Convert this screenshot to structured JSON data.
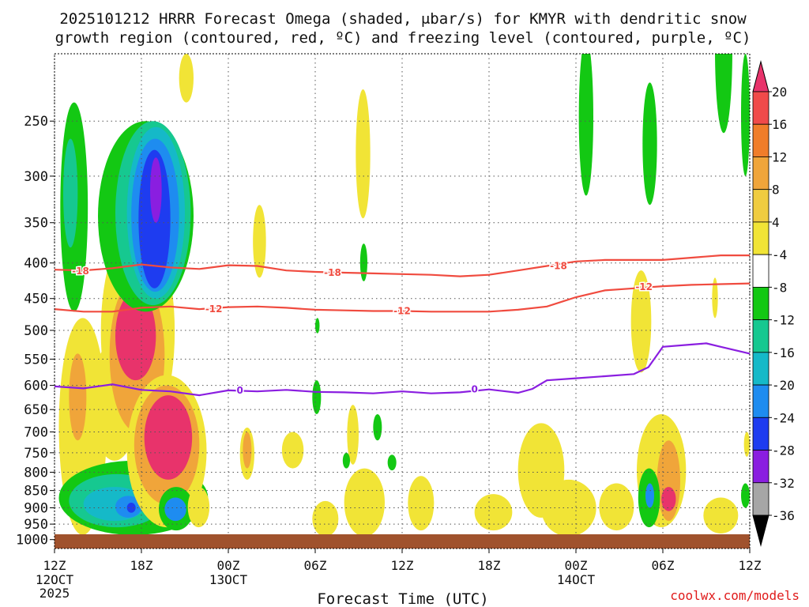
{
  "chart_data": {
    "type": "contour",
    "title_line1": "2025101212 HRRR Forecast Omega (shaded, μbar/s) for KMYR with dendritic snow",
    "title_line2": "growth region (contoured, red, ºC) and freezing level (contoured, purple, ºC)",
    "xlabel": "Forecast Time (UTC)",
    "credit": "coolwx.com/models",
    "x_range_hours": [
      0,
      48
    ],
    "y_range_hpa": [
      200,
      1030
    ],
    "x_ticks": [
      {
        "hour": 0,
        "label": "12Z",
        "sub1": "12OCT",
        "sub2": "2025"
      },
      {
        "hour": 6,
        "label": "18Z",
        "sub1": "",
        "sub2": ""
      },
      {
        "hour": 12,
        "label": "00Z",
        "sub1": "13OCT",
        "sub2": ""
      },
      {
        "hour": 18,
        "label": "06Z",
        "sub1": "",
        "sub2": ""
      },
      {
        "hour": 24,
        "label": "12Z",
        "sub1": "",
        "sub2": ""
      },
      {
        "hour": 30,
        "label": "18Z",
        "sub1": "",
        "sub2": ""
      },
      {
        "hour": 36,
        "label": "00Z",
        "sub1": "14OCT",
        "sub2": ""
      },
      {
        "hour": 42,
        "label": "06Z",
        "sub1": "",
        "sub2": ""
      },
      {
        "hour": 48,
        "label": "12Z",
        "sub1": "",
        "sub2": ""
      }
    ],
    "y_ticks": [
      250,
      300,
      350,
      400,
      450,
      500,
      550,
      600,
      650,
      700,
      750,
      800,
      850,
      900,
      950,
      1000
    ],
    "colorbar": {
      "labels": [
        "20",
        "16",
        "12",
        "8",
        "4",
        "-4",
        "-8",
        "-12",
        "-16",
        "-20",
        "-24",
        "-28",
        "-32",
        "-36"
      ],
      "colors": [
        "#e8336b",
        "#f04a4a",
        "#f07d2a",
        "#f0a53a",
        "#f0cc40",
        "#f1e436",
        "#ffffff",
        "#13c813",
        "#16c890",
        "#15b9c8",
        "#1e8cf0",
        "#1e3cf0",
        "#8a1ee0",
        "#a6a6a6",
        "#000000"
      ]
    },
    "contours": [
      {
        "name": "dendritic-upper",
        "level": "-18",
        "color": "#f04b3f",
        "points": [
          [
            0,
            409
          ],
          [
            2,
            410
          ],
          [
            4,
            407
          ],
          [
            6,
            402
          ],
          [
            8,
            406
          ],
          [
            10,
            408
          ],
          [
            12,
            403
          ],
          [
            14,
            404
          ],
          [
            16,
            410
          ],
          [
            18,
            412
          ],
          [
            20,
            413
          ],
          [
            22,
            414
          ],
          [
            24,
            415
          ],
          [
            26,
            416
          ],
          [
            28,
            418
          ],
          [
            30,
            416
          ],
          [
            32,
            410
          ],
          [
            34,
            404
          ],
          [
            36,
            398
          ],
          [
            38,
            396
          ],
          [
            40,
            396
          ],
          [
            42,
            396
          ],
          [
            44,
            393
          ],
          [
            46,
            390
          ],
          [
            48,
            390
          ]
        ],
        "labels": [
          [
            1.8,
            411
          ],
          [
            19.2,
            413
          ],
          [
            34.8,
            404
          ]
        ]
      },
      {
        "name": "dendritic-lower",
        "level": "-12",
        "color": "#f04b3f",
        "points": [
          [
            0,
            466
          ],
          [
            2,
            470
          ],
          [
            4,
            470
          ],
          [
            6,
            464
          ],
          [
            8,
            462
          ],
          [
            10,
            466
          ],
          [
            12,
            463
          ],
          [
            14,
            462
          ],
          [
            16,
            464
          ],
          [
            18,
            467
          ],
          [
            20,
            468
          ],
          [
            22,
            469
          ],
          [
            24,
            469
          ],
          [
            26,
            470
          ],
          [
            28,
            470
          ],
          [
            30,
            470
          ],
          [
            32,
            467
          ],
          [
            34,
            462
          ],
          [
            36,
            448
          ],
          [
            38,
            438
          ],
          [
            40,
            435
          ],
          [
            42,
            432
          ],
          [
            44,
            430
          ],
          [
            46,
            429
          ],
          [
            48,
            428
          ]
        ],
        "labels": [
          [
            11.0,
            466
          ],
          [
            24.0,
            469
          ],
          [
            40.7,
            433
          ]
        ]
      },
      {
        "name": "freezing-level",
        "level": "0",
        "color": "#8a1ee0",
        "points": [
          [
            0,
            602
          ],
          [
            2,
            606
          ],
          [
            4,
            598
          ],
          [
            6,
            609
          ],
          [
            8,
            612
          ],
          [
            10,
            620
          ],
          [
            12,
            610
          ],
          [
            14,
            612
          ],
          [
            16,
            609
          ],
          [
            18,
            613
          ],
          [
            20,
            614
          ],
          [
            22,
            616
          ],
          [
            24,
            612
          ],
          [
            26,
            616
          ],
          [
            28,
            614
          ],
          [
            30,
            608
          ],
          [
            32,
            615
          ],
          [
            33,
            607
          ],
          [
            34,
            590
          ],
          [
            36,
            586
          ],
          [
            38,
            582
          ],
          [
            40,
            578
          ],
          [
            41,
            565
          ],
          [
            42,
            528
          ],
          [
            44,
            524
          ],
          [
            45,
            522
          ],
          [
            46,
            528
          ],
          [
            48,
            540
          ]
        ],
        "labels": [
          [
            12.8,
            610
          ],
          [
            29.0,
            608
          ]
        ]
      }
    ],
    "omega_regions": [
      {
        "color": "#f1e436",
        "x": [
          0.3,
          3.6
        ],
        "p": [
          480,
          985
        ]
      },
      {
        "color": "#f0a53a",
        "x": [
          1.0,
          2.2
        ],
        "p": [
          540,
          720
        ]
      },
      {
        "color": "#13c813",
        "x": [
          0.4,
          2.3
        ],
        "p": [
          235,
          470
        ]
      },
      {
        "color": "#16c890",
        "x": [
          0.6,
          1.6
        ],
        "p": [
          265,
          380
        ]
      },
      {
        "color": "#13c813",
        "x": [
          0.3,
          10.6
        ],
        "p": [
          770,
          985
        ]
      },
      {
        "color": "#16c890",
        "x": [
          1.0,
          7.6
        ],
        "p": [
          805,
          960
        ]
      },
      {
        "color": "#15b9c8",
        "x": [
          2.0,
          6.3
        ],
        "p": [
          840,
          940
        ]
      },
      {
        "color": "#1e8cf0",
        "x": [
          4.2,
          6.0
        ],
        "p": [
          865,
          930
        ]
      },
      {
        "color": "#1e3cf0",
        "x": [
          5.0,
          5.6
        ],
        "p": [
          885,
          915
        ]
      },
      {
        "color": "#13c813",
        "x": [
          3.0,
          4.8
        ],
        "p": [
          560,
          720
        ]
      },
      {
        "color": "#1e8cf0",
        "x": [
          3.4,
          4.2
        ],
        "p": [
          600,
          670
        ]
      },
      {
        "color": "#f1e436",
        "x": [
          2.5,
          5.8
        ],
        "p": [
          520,
          770
        ]
      },
      {
        "color": "#f1e436",
        "x": [
          3.2,
          8.3
        ],
        "p": [
          350,
          720
        ]
      },
      {
        "color": "#f0a53a",
        "x": [
          3.8,
          7.6
        ],
        "p": [
          420,
          700
        ]
      },
      {
        "color": "#e8336b",
        "x": [
          4.2,
          7.0
        ],
        "p": [
          440,
          590
        ]
      },
      {
        "color": "#f1e436",
        "x": [
          5.0,
          10.5
        ],
        "p": [
          580,
          960
        ]
      },
      {
        "color": "#f0a53a",
        "x": [
          5.5,
          10.0
        ],
        "p": [
          600,
          890
        ]
      },
      {
        "color": "#e8336b",
        "x": [
          6.2,
          9.5
        ],
        "p": [
          620,
          820
        ]
      },
      {
        "color": "#13c813",
        "x": [
          3.0,
          9.6
        ],
        "p": [
          250,
          470
        ]
      },
      {
        "color": "#16c890",
        "x": [
          4.2,
          9.4
        ],
        "p": [
          250,
          460
        ]
      },
      {
        "color": "#15b9c8",
        "x": [
          5.0,
          9.0
        ],
        "p": [
          255,
          450
        ]
      },
      {
        "color": "#1e8cf0",
        "x": [
          5.3,
          8.6
        ],
        "p": [
          265,
          440
        ]
      },
      {
        "color": "#1e3cf0",
        "x": [
          5.8,
          8.0
        ],
        "p": [
          275,
          435
        ]
      },
      {
        "color": "#8a1ee0",
        "x": [
          6.6,
          7.4
        ],
        "p": [
          282,
          350
        ]
      },
      {
        "color": "#13c813",
        "x": [
          7.2,
          9.6
        ],
        "p": [
          840,
          970
        ]
      },
      {
        "color": "#1e8cf0",
        "x": [
          7.6,
          9.1
        ],
        "p": [
          870,
          940
        ]
      },
      {
        "color": "#f1e436",
        "x": [
          9.2,
          10.7
        ],
        "p": [
          840,
          960
        ]
      },
      {
        "color": "#f1e436",
        "x": [
          8.6,
          9.6
        ],
        "p": [
          200,
          235
        ]
      },
      {
        "color": "#f1e436",
        "x": [
          12.8,
          13.8
        ],
        "p": [
          690,
          820
        ]
      },
      {
        "color": "#f0a53a",
        "x": [
          13.0,
          13.6
        ],
        "p": [
          700,
          790
        ]
      },
      {
        "color": "#f1e436",
        "x": [
          13.7,
          14.6
        ],
        "p": [
          330,
          420
        ]
      },
      {
        "color": "#f1e436",
        "x": [
          15.7,
          17.2
        ],
        "p": [
          700,
          790
        ]
      },
      {
        "color": "#13c813",
        "x": [
          17.8,
          18.4
        ],
        "p": [
          590,
          660
        ]
      },
      {
        "color": "#f1e436",
        "x": [
          17.8,
          19.6
        ],
        "p": [
          880,
          990
        ]
      },
      {
        "color": "#f1e436",
        "x": [
          20.8,
          21.8
        ],
        "p": [
          225,
          345
        ]
      },
      {
        "color": "#13c813",
        "x": [
          21.1,
          21.6
        ],
        "p": [
          375,
          425
        ]
      },
      {
        "color": "#13c813",
        "x": [
          18.0,
          18.3
        ],
        "p": [
          480,
          505
        ]
      },
      {
        "color": "#f1e436",
        "x": [
          20.2,
          21.0
        ],
        "p": [
          640,
          780
        ]
      },
      {
        "color": "#13c813",
        "x": [
          22.0,
          22.6
        ],
        "p": [
          660,
          720
        ]
      },
      {
        "color": "#13c813",
        "x": [
          19.9,
          20.4
        ],
        "p": [
          750,
          790
        ]
      },
      {
        "color": "#13c813",
        "x": [
          23.0,
          23.6
        ],
        "p": [
          755,
          795
        ]
      },
      {
        "color": "#f1e436",
        "x": [
          20.0,
          22.8
        ],
        "p": [
          790,
          990
        ]
      },
      {
        "color": "#f1e436",
        "x": [
          24.4,
          26.2
        ],
        "p": [
          810,
          970
        ]
      },
      {
        "color": "#f1e436",
        "x": [
          29.0,
          31.6
        ],
        "p": [
          860,
          970
        ]
      },
      {
        "color": "#f1e436",
        "x": [
          32.0,
          35.2
        ],
        "p": [
          680,
          930
        ]
      },
      {
        "color": "#f1e436",
        "x": [
          33.6,
          37.4
        ],
        "p": [
          820,
          990
        ]
      },
      {
        "color": "#f1e436",
        "x": [
          37.6,
          40.0
        ],
        "p": [
          830,
          970
        ]
      },
      {
        "color": "#f1e436",
        "x": [
          40.2,
          43.6
        ],
        "p": [
          660,
          960
        ]
      },
      {
        "color": "#f0a53a",
        "x": [
          41.6,
          43.2
        ],
        "p": [
          720,
          940
        ]
      },
      {
        "color": "#13c813",
        "x": [
          40.3,
          41.8
        ],
        "p": [
          790,
          960
        ]
      },
      {
        "color": "#1e8cf0",
        "x": [
          40.8,
          41.4
        ],
        "p": [
          830,
          900
        ]
      },
      {
        "color": "#e8336b",
        "x": [
          41.9,
          42.9
        ],
        "p": [
          840,
          910
        ]
      },
      {
        "color": "#f1e436",
        "x": [
          39.8,
          41.2
        ],
        "p": [
          410,
          575
        ]
      },
      {
        "color": "#f1e436",
        "x": [
          45.4,
          45.8
        ],
        "p": [
          420,
          480
        ]
      },
      {
        "color": "#13c813",
        "x": [
          36.2,
          37.2
        ],
        "p": [
          190,
          320
        ]
      },
      {
        "color": "#13c813",
        "x": [
          40.6,
          41.6
        ],
        "p": [
          220,
          330
        ]
      },
      {
        "color": "#13c813",
        "x": [
          45.6,
          46.8
        ],
        "p": [
          150,
          260
        ]
      },
      {
        "color": "#13c813",
        "x": [
          47.4,
          48.0
        ],
        "p": [
          200,
          300
        ]
      },
      {
        "color": "#f1e436",
        "x": [
          44.8,
          47.2
        ],
        "p": [
          870,
          980
        ]
      },
      {
        "color": "#13c813",
        "x": [
          47.4,
          48.0
        ],
        "p": [
          830,
          900
        ]
      },
      {
        "color": "#f1e436",
        "x": [
          47.6,
          48.0
        ],
        "p": [
          700,
          760
        ]
      }
    ]
  }
}
